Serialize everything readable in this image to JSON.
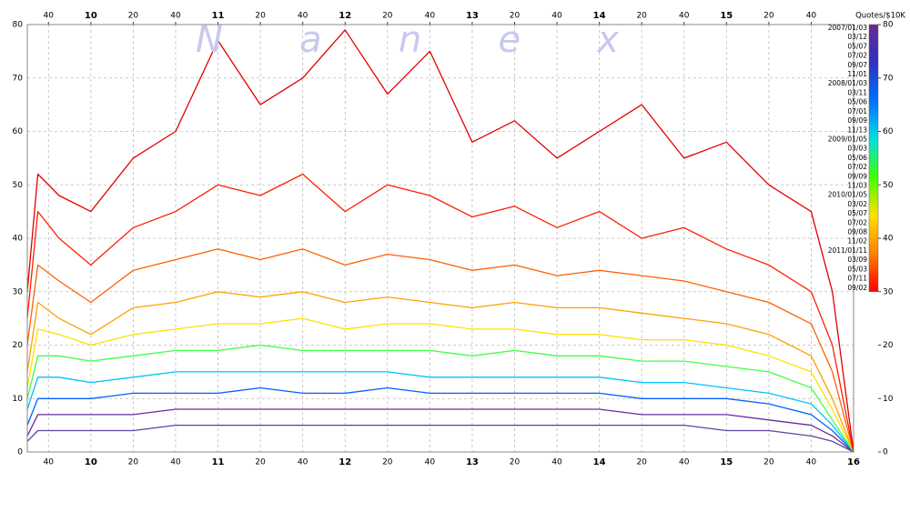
{
  "chart_data": {
    "type": "line",
    "watermark": "N a n e x",
    "unit_label": "Quotes/$10K",
    "x": [
      570,
      575,
      585,
      600,
      620,
      640,
      660,
      680,
      700,
      720,
      740,
      760,
      780,
      800,
      820,
      840,
      860,
      880,
      900,
      920,
      940,
      950,
      960
    ],
    "xlim": [
      570,
      960
    ],
    "xticks": [
      {
        "value": 580,
        "label": "40"
      },
      {
        "value": 600,
        "label": "10"
      },
      {
        "value": 620,
        "label": "20"
      },
      {
        "value": 640,
        "label": "40"
      },
      {
        "value": 660,
        "label": "11"
      },
      {
        "value": 680,
        "label": "20"
      },
      {
        "value": 700,
        "label": "40"
      },
      {
        "value": 720,
        "label": "12"
      },
      {
        "value": 740,
        "label": "20"
      },
      {
        "value": 760,
        "label": "40"
      },
      {
        "value": 780,
        "label": "13"
      },
      {
        "value": 800,
        "label": "20"
      },
      {
        "value": 820,
        "label": "40"
      },
      {
        "value": 840,
        "label": "14"
      },
      {
        "value": 860,
        "label": "20"
      },
      {
        "value": 880,
        "label": "40"
      },
      {
        "value": 900,
        "label": "15"
      },
      {
        "value": 920,
        "label": "20"
      },
      {
        "value": 940,
        "label": "40"
      },
      {
        "value": 960,
        "label": "16"
      }
    ],
    "xticks_top": [
      {
        "value": 580,
        "label": "40"
      },
      {
        "value": 600,
        "label": "10"
      },
      {
        "value": 620,
        "label": "20"
      },
      {
        "value": 640,
        "label": "40"
      },
      {
        "value": 660,
        "label": "11"
      },
      {
        "value": 680,
        "label": "20"
      },
      {
        "value": 700,
        "label": "40"
      },
      {
        "value": 720,
        "label": "12"
      },
      {
        "value": 740,
        "label": "20"
      },
      {
        "value": 760,
        "label": "40"
      },
      {
        "value": 780,
        "label": "13"
      },
      {
        "value": 800,
        "label": "20"
      },
      {
        "value": 820,
        "label": "40"
      },
      {
        "value": 840,
        "label": "14"
      },
      {
        "value": 860,
        "label": "20"
      },
      {
        "value": 880,
        "label": "40"
      },
      {
        "value": 900,
        "label": "15"
      },
      {
        "value": 920,
        "label": "20"
      },
      {
        "value": 940,
        "label": "40"
      }
    ],
    "ylim": [
      0,
      80
    ],
    "yticks": [
      0,
      10,
      20,
      30,
      40,
      50,
      60,
      70,
      80
    ],
    "y2ticks": [
      0,
      10,
      20,
      30,
      40,
      50,
      60,
      70,
      80
    ],
    "grid": true,
    "colorbar": {
      "range": [
        30,
        80
      ],
      "colors": [
        "#ff0000",
        "#ff8000",
        "#ffe000",
        "#40ff00",
        "#00e0e0",
        "#0070ff",
        "#3030c0",
        "#6a2a90"
      ],
      "labels": [
        "2007/01/03",
        "03/12",
        "05/07",
        "07/02",
        "09/07",
        "11/01",
        "2008/01/03",
        "03/11",
        "05/06",
        "07/01",
        "09/09",
        "11/13",
        "2009/01/05",
        "03/03",
        "05/06",
        "07/02",
        "09/09",
        "11/03",
        "2010/01/05",
        "03/02",
        "05/07",
        "07/02",
        "09/08",
        "11/02",
        "2011/01/11",
        "03/09",
        "05/03",
        "07/11",
        "09/02"
      ]
    },
    "series": [
      {
        "color": "#6040a0",
        "values": [
          2,
          4,
          4,
          4,
          4,
          5,
          5,
          5,
          5,
          5,
          5,
          5,
          5,
          5,
          5,
          5,
          5,
          5,
          4,
          4,
          3,
          2,
          0
        ]
      },
      {
        "color": "#6a2a9a",
        "values": [
          3,
          7,
          7,
          7,
          7,
          8,
          8,
          8,
          8,
          8,
          8,
          8,
          8,
          8,
          8,
          8,
          7,
          7,
          7,
          6,
          5,
          3,
          0
        ]
      },
      {
        "color": "#0060ff",
        "values": [
          5,
          10,
          10,
          10,
          11,
          11,
          11,
          12,
          11,
          11,
          12,
          11,
          11,
          11,
          11,
          11,
          10,
          10,
          10,
          9,
          7,
          4,
          0
        ]
      },
      {
        "color": "#00c0ff",
        "values": [
          8,
          14,
          14,
          13,
          14,
          15,
          15,
          15,
          15,
          15,
          15,
          14,
          14,
          14,
          14,
          14,
          13,
          13,
          12,
          11,
          9,
          5,
          0
        ]
      },
      {
        "color": "#40ff40",
        "values": [
          10,
          18,
          18,
          17,
          18,
          19,
          19,
          20,
          19,
          19,
          19,
          19,
          18,
          19,
          18,
          18,
          17,
          17,
          16,
          15,
          12,
          6,
          0
        ]
      },
      {
        "color": "#ffe000",
        "values": [
          12,
          23,
          22,
          20,
          22,
          23,
          24,
          24,
          25,
          23,
          24,
          24,
          23,
          23,
          22,
          22,
          21,
          21,
          20,
          18,
          15,
          8,
          0
        ]
      },
      {
        "color": "#ffa000",
        "values": [
          15,
          28,
          25,
          22,
          27,
          28,
          30,
          29,
          30,
          28,
          29,
          28,
          27,
          28,
          27,
          27,
          26,
          25,
          24,
          22,
          18,
          10,
          0
        ]
      },
      {
        "color": "#ff6000",
        "values": [
          20,
          35,
          32,
          28,
          34,
          36,
          38,
          36,
          38,
          35,
          37,
          36,
          34,
          35,
          33,
          34,
          33,
          32,
          30,
          28,
          24,
          15,
          0
        ]
      },
      {
        "color": "#ff2000",
        "values": [
          25,
          45,
          40,
          35,
          42,
          45,
          50,
          48,
          52,
          45,
          50,
          48,
          44,
          46,
          42,
          45,
          40,
          42,
          38,
          35,
          30,
          20,
          0
        ]
      },
      {
        "color": "#e00000",
        "values": [
          30,
          52,
          48,
          45,
          55,
          60,
          77,
          65,
          70,
          79,
          67,
          75,
          58,
          62,
          55,
          60,
          65,
          55,
          58,
          50,
          45,
          30,
          0
        ]
      }
    ]
  }
}
